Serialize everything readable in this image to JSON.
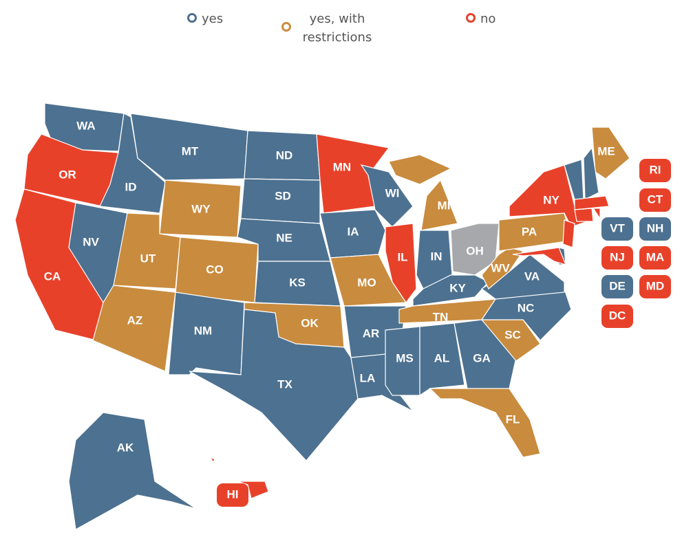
{
  "legend": [
    {
      "label": "yes",
      "color": "#4d7190"
    },
    {
      "label": "yes, with restrictions",
      "color": "#c98b3e"
    },
    {
      "label": "no",
      "color": "#e8412a"
    }
  ],
  "no_status_color": "#a6a8ab",
  "states": [
    {
      "label": "WA",
      "status": "yes"
    },
    {
      "label": "OR",
      "status": "no"
    },
    {
      "label": "CA",
      "status": "no"
    },
    {
      "label": "NV",
      "status": "yes"
    },
    {
      "label": "ID",
      "status": "yes"
    },
    {
      "label": "MT",
      "status": "yes"
    },
    {
      "label": "WY",
      "status": "yes, with restrictions"
    },
    {
      "label": "UT",
      "status": "yes, with restrictions"
    },
    {
      "label": "CO",
      "status": "yes, with restrictions"
    },
    {
      "label": "AZ",
      "status": "yes, with restrictions"
    },
    {
      "label": "NM",
      "status": "yes"
    },
    {
      "label": "ND",
      "status": "yes"
    },
    {
      "label": "SD",
      "status": "yes"
    },
    {
      "label": "NE",
      "status": "yes"
    },
    {
      "label": "KS",
      "status": "yes"
    },
    {
      "label": "OK",
      "status": "yes, with restrictions"
    },
    {
      "label": "TX",
      "status": "yes"
    },
    {
      "label": "MN",
      "status": "no"
    },
    {
      "label": "IA",
      "status": "yes"
    },
    {
      "label": "MO",
      "status": "yes, with restrictions"
    },
    {
      "label": "AR",
      "status": "yes"
    },
    {
      "label": "LA",
      "status": "yes"
    },
    {
      "label": "WI",
      "status": "yes"
    },
    {
      "label": "IL",
      "status": "no"
    },
    {
      "label": "MI",
      "status": "yes, with restrictions"
    },
    {
      "label": "IN",
      "status": "yes"
    },
    {
      "label": "OH",
      "status": null
    },
    {
      "label": "KY",
      "status": "yes"
    },
    {
      "label": "TN",
      "status": "yes, with restrictions"
    },
    {
      "label": "MS",
      "status": "yes"
    },
    {
      "label": "AL",
      "status": "yes"
    },
    {
      "label": "GA",
      "status": "yes"
    },
    {
      "label": "FL",
      "status": "yes, with restrictions"
    },
    {
      "label": "SC",
      "status": "yes, with restrictions"
    },
    {
      "label": "NC",
      "status": "yes"
    },
    {
      "label": "VA",
      "status": "yes"
    },
    {
      "label": "WV",
      "status": "yes, with restrictions"
    },
    {
      "label": "PA",
      "status": "yes, with restrictions"
    },
    {
      "label": "NY",
      "status": "no"
    },
    {
      "label": "ME",
      "status": "yes, with restrictions"
    },
    {
      "label": "VT",
      "status": "yes"
    },
    {
      "label": "NH",
      "status": "yes"
    },
    {
      "label": "MA",
      "status": "no"
    },
    {
      "label": "CT",
      "status": "no"
    },
    {
      "label": "RI",
      "status": "no"
    },
    {
      "label": "NJ",
      "status": "no"
    },
    {
      "label": "DE",
      "status": "yes"
    },
    {
      "label": "MD",
      "status": "no"
    },
    {
      "label": "DC",
      "status": "no"
    },
    {
      "label": "AK",
      "status": "yes"
    },
    {
      "label": "HI",
      "status": "no"
    }
  ]
}
